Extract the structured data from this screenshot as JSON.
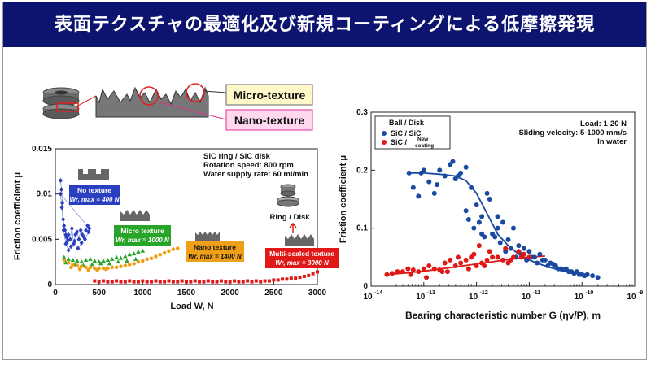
{
  "slide": {
    "title": "表面テクスチャの最適化及び新規コーティングによる低摩擦発現"
  },
  "texture_labels": {
    "micro": "Micro-texture",
    "nano": "Nano-texture"
  },
  "colors": {
    "banner": "#0c1470",
    "blue_series": "#2a3ec0",
    "green_series": "#28a428",
    "orange_series": "#f0a018",
    "red_series": "#e01818",
    "curve": "#1a4aa0",
    "micro_box": "#fff8c8",
    "nano_box": "#ffd8f0"
  },
  "chart_data": [
    {
      "type": "scatter",
      "xlabel": "Load W, N",
      "ylabel": "Friction coefficient μ",
      "xlim": [
        0,
        3000
      ],
      "ylim": [
        0,
        0.015
      ],
      "x_ticks": [
        "0",
        "500",
        "1000",
        "1500",
        "2000",
        "2500",
        "3000"
      ],
      "y_ticks": [
        "0",
        "0.005",
        "0.01",
        "0.015"
      ],
      "conditions": [
        "SiC ring / SiC disk",
        "Rotation speed: 800 rpm",
        "Water supply rate: 60 ml/min"
      ],
      "ring_disk_label": "Ring / Disk",
      "series": [
        {
          "name": "No texture",
          "label_line1": "No texture",
          "label_line2": "Wr, max = 400 N",
          "color": "#2a3ec0",
          "x": [
            60,
            70,
            80,
            90,
            100,
            110,
            120,
            130,
            140,
            150,
            170,
            190,
            210,
            230,
            250,
            270,
            290,
            310,
            330,
            350,
            370,
            390,
            60,
            75,
            95,
            120,
            150,
            180,
            220,
            260,
            300,
            340,
            380
          ],
          "y": [
            0.0115,
            0.0105,
            0.009,
            0.0072,
            0.0065,
            0.006,
            0.0055,
            0.0052,
            0.0048,
            0.0055,
            0.005,
            0.0062,
            0.0045,
            0.0055,
            0.0058,
            0.005,
            0.006,
            0.0055,
            0.0052,
            0.006,
            0.0065,
            0.0062,
            0.01,
            0.0085,
            0.006,
            0.0045,
            0.0038,
            0.0042,
            0.0048,
            0.004,
            0.0046,
            0.005,
            0.0058
          ]
        },
        {
          "name": "Micro texture",
          "label_line1": "Micro texture",
          "label_line2": "Wr, max = 1000 N",
          "color": "#28a428",
          "x": [
            100,
            150,
            200,
            250,
            300,
            350,
            400,
            450,
            500,
            550,
            600,
            650,
            700,
            750,
            800,
            850,
            900,
            950,
            1000,
            120,
            220,
            320,
            420,
            520,
            620,
            720,
            820,
            920
          ],
          "y": [
            0.003,
            0.0028,
            0.0027,
            0.0026,
            0.0025,
            0.0027,
            0.0028,
            0.0026,
            0.0025,
            0.0026,
            0.0027,
            0.0028,
            0.003,
            0.0029,
            0.0031,
            0.0033,
            0.0034,
            0.0036,
            0.0037,
            0.0024,
            0.0022,
            0.0021,
            0.0022,
            0.0023,
            0.0023,
            0.0025,
            0.0026,
            0.0028
          ]
        },
        {
          "name": "Nano texture",
          "label_line1": "Nano texture",
          "label_line2": "Wr, max = 1400 N",
          "color": "#f0a018",
          "x": [
            100,
            150,
            200,
            250,
            300,
            350,
            400,
            450,
            500,
            550,
            600,
            650,
            700,
            750,
            800,
            850,
            900,
            950,
            1000,
            1050,
            1100,
            1150,
            1200,
            1250,
            1300,
            1350,
            1400,
            180,
            280,
            380,
            480,
            580
          ],
          "y": [
            0.0027,
            0.0024,
            0.0022,
            0.0021,
            0.002,
            0.0019,
            0.0019,
            0.0018,
            0.0018,
            0.0018,
            0.0018,
            0.0019,
            0.0019,
            0.002,
            0.0021,
            0.0022,
            0.0023,
            0.0025,
            0.0026,
            0.0028,
            0.0029,
            0.0031,
            0.0033,
            0.0035,
            0.0037,
            0.0039,
            0.004,
            0.0019,
            0.0017,
            0.0016,
            0.0016,
            0.0017
          ]
        },
        {
          "name": "Multi-scaled texture",
          "label_line1": "Multi-scaled texture",
          "label_line2": "Wr, max = 3000 N",
          "color": "#e01818",
          "x": [
            450,
            500,
            550,
            600,
            650,
            700,
            750,
            800,
            850,
            900,
            950,
            1000,
            1050,
            1100,
            1150,
            1200,
            1250,
            1300,
            1350,
            1400,
            1450,
            1500,
            1550,
            1600,
            1650,
            1700,
            1750,
            1800,
            1850,
            1900,
            1950,
            2000,
            2050,
            2100,
            2150,
            2200,
            2250,
            2300,
            2350,
            2400,
            2450,
            2500,
            2550,
            2600,
            2650,
            2700,
            2750,
            2800,
            2850,
            2900,
            2950,
            3000
          ],
          "y": [
            0.0004,
            0.0003,
            0.0004,
            0.0003,
            0.0003,
            0.0004,
            0.0003,
            0.0003,
            0.0004,
            0.0003,
            0.0003,
            0.0004,
            0.0003,
            0.0003,
            0.0004,
            0.0003,
            0.0003,
            0.0004,
            0.0003,
            0.0003,
            0.0004,
            0.0003,
            0.0003,
            0.0004,
            0.0003,
            0.0003,
            0.0004,
            0.0003,
            0.0003,
            0.0004,
            0.0003,
            0.0003,
            0.0004,
            0.0003,
            0.0003,
            0.0004,
            0.0003,
            0.0004,
            0.0003,
            0.0004,
            0.0004,
            0.0005,
            0.0005,
            0.0006,
            0.0006,
            0.0007,
            0.0007,
            0.0008,
            0.0009,
            0.001,
            0.0012,
            0.0014
          ]
        }
      ]
    },
    {
      "type": "scatter",
      "xscale": "log",
      "xlabel": "Bearing characteristic number G (ηv/P), m",
      "ylabel": "Friction coefficient μ",
      "xlim": [
        1e-14,
        1e-09
      ],
      "ylim": [
        0,
        0.3
      ],
      "x_tick_bases": [
        "10",
        "10",
        "10",
        "10",
        "10",
        "10"
      ],
      "x_tick_exps": [
        "-14",
        "-13",
        "-12",
        "-11",
        "-10",
        "-9"
      ],
      "y_ticks": [
        "0",
        "0.1",
        "0.2",
        "0.3"
      ],
      "legend_title": "Ball / Disk",
      "legend_position": "top-left",
      "conditions": [
        "Load: 1-20 N",
        "Sliding velocity: 5-1000 mm/s",
        "In water"
      ],
      "series": [
        {
          "name": "SiC / SiC",
          "color": "#1a4aa0",
          "log10x": [
            -13.28,
            -13.2,
            -13.1,
            -13,
            -12.9,
            -12.8,
            -12.7,
            -12.6,
            -12.5,
            -12.45,
            -12.4,
            -12.3,
            -12.2,
            -12.1,
            -12,
            -11.9,
            -11.8,
            -11.7,
            -11.6,
            -11.5,
            -11.4,
            -11.3,
            -11.2,
            -11.1,
            -11,
            -10.9,
            -10.8,
            -10.7,
            -10.6,
            -10.5,
            -10.4,
            -10.3,
            -10.2,
            -10.1,
            -10,
            -9.9,
            -9.8,
            -9.7,
            -13.05,
            -12.75,
            -12.35,
            -12.15,
            -12.05,
            -11.95,
            -11.85,
            -11.75,
            -11.65,
            -11.55,
            -11.45,
            -11.35,
            -11.25,
            -11.15,
            -11.05,
            -10.95,
            -10.85,
            -10.75,
            -10.65,
            -10.55,
            -10.45,
            -10.35,
            -10.25,
            -10.15,
            -10.05,
            -9.95,
            -12.2,
            -11.6,
            -11.9
          ],
          "y": [
            0.195,
            0.17,
            0.155,
            0.2,
            0.18,
            0.16,
            0.2,
            0.19,
            0.21,
            0.215,
            0.185,
            0.195,
            0.13,
            0.17,
            0.14,
            0.12,
            0.16,
            0.09,
            0.12,
            0.11,
            0.08,
            0.1,
            0.07,
            0.065,
            0.06,
            0.05,
            0.055,
            0.045,
            0.04,
            0.035,
            0.03,
            0.03,
            0.025,
            0.025,
            0.02,
            0.02,
            0.018,
            0.015,
            0.195,
            0.175,
            0.19,
            0.115,
            0.1,
            0.11,
            0.085,
            0.15,
            0.085,
            0.075,
            0.06,
            0.065,
            0.05,
            0.055,
            0.045,
            0.05,
            0.04,
            0.045,
            0.035,
            0.038,
            0.03,
            0.028,
            0.025,
            0.022,
            0.02,
            0.018,
            0.205,
            0.1,
            0.09
          ]
        },
        {
          "name": "SiC / New coating",
          "label_main": "SiC / ",
          "label_new": "New",
          "label_coating": "coating",
          "color": "#e01818",
          "log10x": [
            -13.7,
            -13.6,
            -13.5,
            -13.4,
            -13.3,
            -13.2,
            -13.1,
            -13,
            -12.9,
            -12.8,
            -12.7,
            -12.6,
            -12.5,
            -12.4,
            -12.3,
            -12.2,
            -12.1,
            -12,
            -11.9,
            -11.8,
            -11.7,
            -11.6,
            -11.5,
            -11.4,
            -11.3,
            -11.2,
            -11.1,
            -11,
            -13.25,
            -12.95,
            -12.65,
            -12.35,
            -12.05,
            -11.75,
            -11.45,
            -11.15,
            -12.55,
            -11.95,
            -11.35,
            -12.15,
            -11.85
          ],
          "y": [
            0.02,
            0.022,
            0.025,
            0.025,
            0.03,
            0.028,
            0.025,
            0.03,
            0.035,
            0.03,
            0.028,
            0.04,
            0.045,
            0.035,
            0.04,
            0.045,
            0.05,
            0.035,
            0.04,
            0.045,
            0.05,
            0.05,
            0.045,
            0.04,
            0.05,
            0.06,
            0.055,
            0.05,
            0.02,
            0.015,
            0.025,
            0.05,
            0.055,
            0.06,
            0.065,
            0.05,
            0.025,
            0.07,
            0.045,
            0.03,
            0.035
          ]
        }
      ],
      "trend_curves": [
        {
          "name": "SiC / SiC",
          "log10x": [
            -13.3,
            -13,
            -12.7,
            -12.4,
            -12.2,
            -12,
            -11.8,
            -11.6,
            -11.4,
            -11.2,
            -11,
            -10.8,
            -10.6,
            -10.4,
            -10.2,
            -10
          ],
          "y": [
            0.195,
            0.195,
            0.193,
            0.19,
            0.182,
            0.16,
            0.125,
            0.09,
            0.07,
            0.055,
            0.045,
            0.038,
            0.032,
            0.027,
            0.023,
            0.02
          ]
        },
        {
          "name": "SiC / New coating",
          "log10x": [
            -13.7,
            -13.3,
            -12.9,
            -12.5,
            -12.1,
            -11.7,
            -11.3,
            -11,
            -10.7
          ],
          "y": [
            0.02,
            0.023,
            0.027,
            0.032,
            0.037,
            0.042,
            0.047,
            0.05,
            0.052
          ]
        }
      ]
    }
  ]
}
